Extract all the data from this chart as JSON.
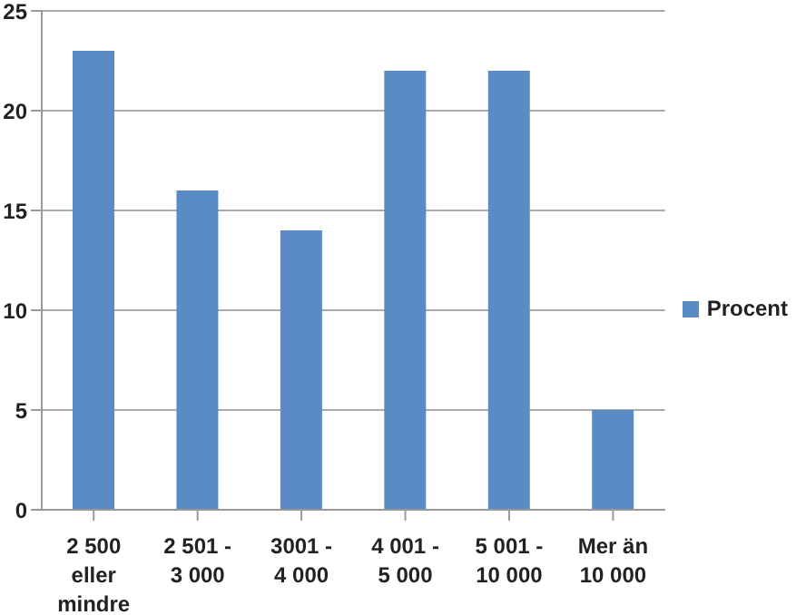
{
  "chart_data": {
    "type": "bar",
    "categories": [
      "2 500 eller mindre",
      "2 501 - 3 000",
      "3001 - 4 000",
      "4 001 - 5 000",
      "5 001 - 10 000",
      "Mer än 10 000"
    ],
    "series": [
      {
        "name": "Procent",
        "color": "#5b8bc5",
        "values": [
          23,
          16,
          14,
          22,
          22,
          5
        ]
      }
    ],
    "ylim": [
      0,
      25
    ],
    "yticks": [
      0,
      5,
      10,
      15,
      20,
      25
    ],
    "grid": "y",
    "legend": "right"
  }
}
